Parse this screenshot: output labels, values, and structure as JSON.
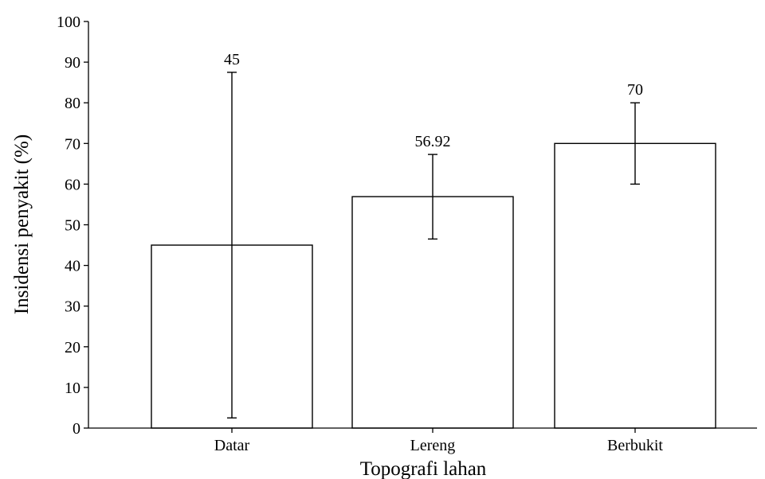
{
  "chart_data": {
    "type": "bar",
    "title": "",
    "xlabel": "Topografi lahan",
    "ylabel": "Insidensi penyakit (%)",
    "categories": [
      "Datar",
      "Lereng",
      "Berbukit"
    ],
    "values": [
      45,
      56.92,
      70
    ],
    "data_labels": [
      "45",
      "56.92",
      "70"
    ],
    "error_bars": [
      {
        "low": 2.5,
        "high": 87.5
      },
      {
        "low": 46.5,
        "high": 67.3
      },
      {
        "low": 60,
        "high": 80
      }
    ],
    "ylim": [
      0,
      100
    ],
    "yticks": [
      0,
      10,
      20,
      30,
      40,
      50,
      60,
      70,
      80,
      90,
      100
    ],
    "ytick_labels": [
      "0",
      "10",
      "20",
      "30",
      "40",
      "50",
      "60",
      "70",
      "80",
      "90",
      "100"
    ],
    "grid": false,
    "legend": "none",
    "colors": {
      "bar_fill": "#ffffff",
      "stroke": "#000000"
    }
  }
}
